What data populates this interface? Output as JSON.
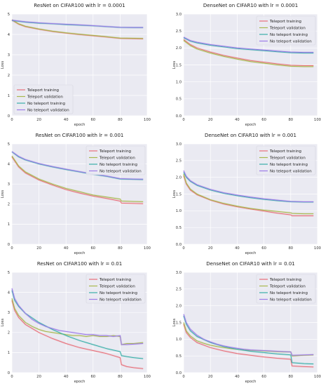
{
  "chart_data": [
    {
      "type": "line",
      "title": "ResNet on CIFAR100 with lr = 0.0001",
      "xlabel": "epoch",
      "ylabel": "Loss",
      "xlim": [
        0,
        100
      ],
      "ylim": [
        0,
        5
      ],
      "xticks": [
        0,
        20,
        40,
        60,
        80,
        100
      ],
      "yticks": [
        0,
        1,
        2,
        3,
        4,
        5
      ],
      "grid": true,
      "legend_position": "bottom-left",
      "series": [
        {
          "name": "Teleport training",
          "color": "#e8707a",
          "x": [
            0,
            5,
            10,
            20,
            30,
            40,
            50,
            60,
            70,
            80,
            90,
            97
          ],
          "y": [
            4.7,
            4.5,
            4.38,
            4.25,
            4.14,
            4.06,
            3.99,
            3.93,
            3.87,
            3.8,
            3.79,
            3.78
          ]
        },
        {
          "name": "Teleport validation",
          "color": "#a8b84e",
          "x": [
            0,
            5,
            10,
            20,
            30,
            40,
            50,
            60,
            70,
            80,
            90,
            97
          ],
          "y": [
            4.72,
            4.52,
            4.4,
            4.27,
            4.16,
            4.08,
            4.01,
            3.95,
            3.89,
            3.82,
            3.81,
            3.8
          ]
        },
        {
          "name": "No teleport training",
          "color": "#3aafa9",
          "x": [
            0,
            10,
            20,
            30,
            40,
            50,
            60,
            70,
            80,
            90,
            97
          ],
          "y": [
            4.68,
            4.6,
            4.55,
            4.52,
            4.48,
            4.45,
            4.42,
            4.38,
            4.34,
            4.33,
            4.33
          ]
        },
        {
          "name": "No teleport validation",
          "color": "#9d7ce8",
          "x": [
            0,
            10,
            20,
            30,
            40,
            50,
            60,
            70,
            80,
            90,
            97
          ],
          "y": [
            4.7,
            4.62,
            4.57,
            4.53,
            4.5,
            4.47,
            4.43,
            4.39,
            4.35,
            4.34,
            4.34
          ]
        }
      ]
    },
    {
      "type": "line",
      "title": "DenseNet on CIFAR10 with lr = 0.0001",
      "xlabel": "epoch",
      "ylabel": "Loss",
      "xlim": [
        0,
        100
      ],
      "ylim": [
        0,
        3
      ],
      "xticks": [
        0,
        20,
        40,
        60,
        80,
        100
      ],
      "yticks": [
        0.0,
        0.5,
        1.0,
        1.5,
        2.0,
        2.5,
        3.0
      ],
      "grid": true,
      "legend_position": "top-right",
      "series": [
        {
          "name": "Teleport training",
          "color": "#e8707a",
          "x": [
            0,
            5,
            10,
            20,
            30,
            40,
            50,
            60,
            70,
            80,
            90,
            97
          ],
          "y": [
            2.25,
            2.1,
            2.0,
            1.88,
            1.78,
            1.7,
            1.63,
            1.58,
            1.53,
            1.49,
            1.48,
            1.48
          ]
        },
        {
          "name": "Teleport validation",
          "color": "#a8b84e",
          "x": [
            0,
            5,
            10,
            20,
            30,
            40,
            50,
            60,
            70,
            80,
            90,
            97
          ],
          "y": [
            2.22,
            2.07,
            1.97,
            1.85,
            1.75,
            1.67,
            1.6,
            1.55,
            1.5,
            1.46,
            1.45,
            1.45
          ]
        },
        {
          "name": "No teleport training",
          "color": "#3aafa9",
          "x": [
            0,
            5,
            10,
            20,
            30,
            40,
            50,
            60,
            70,
            80,
            90,
            97
          ],
          "y": [
            2.3,
            2.2,
            2.15,
            2.08,
            2.03,
            1.98,
            1.95,
            1.92,
            1.89,
            1.86,
            1.85,
            1.85
          ]
        },
        {
          "name": "No teleport validation",
          "color": "#9d7ce8",
          "x": [
            0,
            5,
            10,
            20,
            30,
            40,
            50,
            60,
            70,
            80,
            90,
            97
          ],
          "y": [
            2.32,
            2.22,
            2.17,
            2.1,
            2.05,
            2.0,
            1.97,
            1.94,
            1.91,
            1.88,
            1.87,
            1.87
          ]
        }
      ]
    },
    {
      "type": "line",
      "title": "ResNet on CIFAR100 with lr = 0.001",
      "xlabel": "epoch",
      "ylabel": "Loss",
      "xlim": [
        0,
        100
      ],
      "ylim": [
        0,
        5
      ],
      "xticks": [
        0,
        20,
        40,
        60,
        80,
        100
      ],
      "yticks": [
        0,
        1,
        2,
        3,
        4,
        5
      ],
      "grid": true,
      "legend_position": "top-right",
      "series": [
        {
          "name": "Teleport training",
          "color": "#e8707a",
          "x": [
            0,
            5,
            10,
            20,
            30,
            40,
            50,
            60,
            70,
            80,
            81,
            90,
            97
          ],
          "y": [
            4.35,
            3.85,
            3.55,
            3.2,
            2.95,
            2.72,
            2.55,
            2.4,
            2.28,
            2.15,
            2.05,
            2.03,
            2.02
          ]
        },
        {
          "name": "Teleport validation",
          "color": "#a8b84e",
          "x": [
            0,
            5,
            10,
            20,
            30,
            40,
            50,
            60,
            70,
            80,
            81,
            90,
            97
          ],
          "y": [
            4.4,
            3.9,
            3.6,
            3.25,
            3.0,
            2.78,
            2.62,
            2.45,
            2.35,
            2.25,
            2.15,
            2.13,
            2.12
          ]
        },
        {
          "name": "No teleport training",
          "color": "#3aafa9",
          "x": [
            0,
            5,
            10,
            20,
            30,
            40,
            50,
            60,
            70,
            80,
            90,
            97
          ],
          "y": [
            4.6,
            4.35,
            4.2,
            4.0,
            3.85,
            3.72,
            3.6,
            3.48,
            3.38,
            3.25,
            3.23,
            3.22
          ]
        },
        {
          "name": "No teleport validation",
          "color": "#9d7ce8",
          "x": [
            0,
            5,
            10,
            20,
            30,
            40,
            50,
            60,
            70,
            80,
            90,
            97
          ],
          "y": [
            4.62,
            4.38,
            4.22,
            4.02,
            3.87,
            3.74,
            3.62,
            3.5,
            3.4,
            3.27,
            3.25,
            3.24
          ]
        }
      ]
    },
    {
      "type": "line",
      "title": "DenseNet on CIFAR10 with lr = 0.001",
      "xlabel": "epoch",
      "ylabel": "Loss",
      "xlim": [
        0,
        100
      ],
      "ylim": [
        0,
        3
      ],
      "xticks": [
        0,
        20,
        40,
        60,
        80,
        100
      ],
      "yticks": [
        0.0,
        0.5,
        1.0,
        1.5,
        2.0,
        2.5,
        3.0
      ],
      "grid": true,
      "legend_position": "top-right",
      "series": [
        {
          "name": "Teleport training",
          "color": "#e8707a",
          "x": [
            0,
            2,
            5,
            10,
            20,
            30,
            40,
            50,
            60,
            70,
            80,
            81,
            90,
            97
          ],
          "y": [
            2.05,
            1.8,
            1.62,
            1.48,
            1.32,
            1.2,
            1.12,
            1.05,
            0.99,
            0.93,
            0.88,
            0.85,
            0.85,
            0.85
          ]
        },
        {
          "name": "Teleport validation",
          "color": "#a8b84e",
          "x": [
            0,
            2,
            5,
            10,
            20,
            30,
            40,
            50,
            60,
            70,
            80,
            81,
            90,
            97
          ],
          "y": [
            2.1,
            1.83,
            1.65,
            1.5,
            1.33,
            1.22,
            1.14,
            1.07,
            1.02,
            0.98,
            0.94,
            0.92,
            0.91,
            0.91
          ]
        },
        {
          "name": "No teleport training",
          "color": "#3aafa9",
          "x": [
            0,
            2,
            5,
            10,
            20,
            30,
            40,
            50,
            60,
            70,
            80,
            90,
            97
          ],
          "y": [
            2.15,
            2.0,
            1.88,
            1.76,
            1.62,
            1.52,
            1.45,
            1.39,
            1.34,
            1.3,
            1.27,
            1.26,
            1.26
          ]
        },
        {
          "name": "No teleport validation",
          "color": "#9d7ce8",
          "x": [
            0,
            2,
            5,
            10,
            20,
            30,
            40,
            50,
            60,
            70,
            80,
            90,
            97
          ],
          "y": [
            2.2,
            2.03,
            1.9,
            1.78,
            1.64,
            1.54,
            1.47,
            1.41,
            1.36,
            1.32,
            1.28,
            1.27,
            1.27
          ]
        }
      ]
    },
    {
      "type": "line",
      "title": "ResNet on CIFAR100 with lr = 0.01",
      "xlabel": "epoch",
      "ylabel": "Loss",
      "xlim": [
        0,
        100
      ],
      "ylim": [
        0,
        5
      ],
      "xticks": [
        0,
        20,
        40,
        60,
        80,
        100
      ],
      "yticks": [
        0,
        1,
        2,
        3,
        4,
        5
      ],
      "grid": true,
      "legend_position": "top-right",
      "series": [
        {
          "name": "Teleport training",
          "color": "#e8707a",
          "x": [
            0,
            2,
            5,
            10,
            20,
            30,
            40,
            50,
            60,
            70,
            80,
            81,
            85,
            90,
            97
          ],
          "y": [
            3.6,
            3.1,
            2.75,
            2.4,
            2.0,
            1.7,
            1.45,
            1.25,
            1.1,
            0.95,
            0.75,
            0.4,
            0.3,
            0.25,
            0.2
          ]
        },
        {
          "name": "Teleport validation",
          "color": "#a8b84e",
          "x": [
            0,
            2,
            5,
            10,
            15,
            20,
            25,
            30,
            35,
            40,
            45,
            50,
            55,
            60,
            65,
            70,
            75,
            80,
            81,
            85,
            90,
            97
          ],
          "y": [
            3.7,
            3.2,
            2.85,
            2.5,
            2.3,
            2.15,
            2.05,
            2.0,
            1.95,
            1.9,
            1.85,
            1.85,
            1.8,
            1.85,
            1.8,
            1.8,
            1.85,
            1.8,
            1.4,
            1.45,
            1.45,
            1.5
          ]
        },
        {
          "name": "No teleport training",
          "color": "#3aafa9",
          "x": [
            0,
            2,
            5,
            10,
            20,
            30,
            40,
            50,
            60,
            70,
            80,
            81,
            85,
            90,
            97
          ],
          "y": [
            4.1,
            3.6,
            3.3,
            2.95,
            2.5,
            2.15,
            1.85,
            1.6,
            1.4,
            1.2,
            1.05,
            0.85,
            0.8,
            0.75,
            0.7
          ]
        },
        {
          "name": "No teleport validation",
          "color": "#9d7ce8",
          "x": [
            0,
            2,
            5,
            10,
            15,
            20,
            25,
            30,
            35,
            40,
            45,
            50,
            55,
            60,
            65,
            70,
            75,
            80,
            81,
            85,
            90,
            97
          ],
          "y": [
            4.2,
            3.7,
            3.35,
            2.95,
            2.65,
            2.45,
            2.3,
            2.2,
            2.1,
            2.05,
            2.0,
            1.95,
            1.9,
            1.9,
            1.85,
            1.85,
            1.8,
            1.85,
            1.4,
            1.4,
            1.42,
            1.45
          ]
        }
      ]
    },
    {
      "type": "line",
      "title": "DenseNet on CIFAR10 with lr = 0.01",
      "xlabel": "epoch",
      "ylabel": "Loss",
      "xlim": [
        0,
        100
      ],
      "ylim": [
        0,
        3
      ],
      "xticks": [
        0,
        20,
        40,
        60,
        80,
        100
      ],
      "yticks": [
        0.0,
        0.5,
        1.0,
        1.5,
        2.0,
        2.5,
        3.0
      ],
      "grid": true,
      "legend_position": "top-right",
      "series": [
        {
          "name": "Teleport training",
          "color": "#e8707a",
          "x": [
            0,
            2,
            5,
            10,
            20,
            30,
            40,
            50,
            60,
            70,
            80,
            81,
            90,
            97
          ],
          "y": [
            1.45,
            1.2,
            1.05,
            0.9,
            0.75,
            0.65,
            0.57,
            0.52,
            0.47,
            0.43,
            0.4,
            0.2,
            0.18,
            0.17
          ]
        },
        {
          "name": "Teleport validation",
          "color": "#a8b84e",
          "x": [
            0,
            2,
            5,
            10,
            15,
            20,
            25,
            30,
            35,
            40,
            45,
            50,
            55,
            60,
            65,
            70,
            75,
            80,
            81,
            90,
            97
          ],
          "y": [
            1.5,
            1.25,
            1.1,
            0.95,
            0.88,
            0.82,
            0.78,
            0.75,
            0.72,
            0.7,
            0.68,
            0.67,
            0.66,
            0.65,
            0.64,
            0.63,
            0.62,
            0.62,
            0.5,
            0.52,
            0.53
          ]
        },
        {
          "name": "No teleport training",
          "color": "#3aafa9",
          "x": [
            0,
            2,
            5,
            10,
            20,
            30,
            40,
            50,
            60,
            70,
            80,
            81,
            90,
            97
          ],
          "y": [
            1.7,
            1.45,
            1.25,
            1.08,
            0.9,
            0.78,
            0.7,
            0.64,
            0.6,
            0.56,
            0.53,
            0.3,
            0.27,
            0.26
          ]
        },
        {
          "name": "No teleport validation",
          "color": "#9d7ce8",
          "x": [
            0,
            2,
            5,
            10,
            15,
            20,
            25,
            30,
            35,
            40,
            45,
            50,
            55,
            60,
            65,
            70,
            75,
            80,
            81,
            90,
            97
          ],
          "y": [
            1.75,
            1.5,
            1.3,
            1.12,
            1.0,
            0.92,
            0.85,
            0.8,
            0.76,
            0.73,
            0.7,
            0.68,
            0.67,
            0.66,
            0.65,
            0.64,
            0.63,
            0.62,
            0.52,
            0.53,
            0.54
          ]
        }
      ]
    }
  ]
}
